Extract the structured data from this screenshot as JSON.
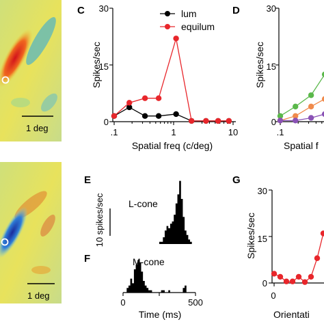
{
  "panels": {
    "a_scale": "1 deg",
    "b_scale": "1 deg",
    "c_letter": "C",
    "d_letter": "D",
    "e_letter": "E",
    "f_letter": "F",
    "g_letter": "G"
  },
  "histograms": {
    "e_label": "L-cone",
    "f_label": "M-cone",
    "scale_label": "10 spikes/sec",
    "x_label": "Time (ms)",
    "x_ticks": [
      "0",
      "500"
    ],
    "e_counts": [
      0,
      0,
      0,
      0,
      0,
      0,
      0,
      0,
      0,
      0,
      0,
      0,
      0,
      0,
      0,
      0,
      0,
      0,
      0,
      0,
      1,
      1,
      3,
      6,
      8,
      7,
      9,
      10,
      13,
      18,
      22,
      28,
      20,
      12,
      6,
      4,
      2,
      1,
      0,
      0
    ],
    "f_counts": [
      0,
      0,
      2,
      3,
      6,
      4,
      10,
      12,
      14,
      13,
      9,
      5,
      3,
      2,
      1,
      1,
      0,
      0,
      0,
      0,
      0,
      1,
      1,
      0,
      0,
      1,
      0,
      0,
      0,
      0,
      0,
      0,
      0,
      2,
      3,
      0,
      0,
      0,
      0,
      0
    ]
  },
  "chart_data": [
    {
      "panel": "C",
      "type": "line",
      "xscale": "log",
      "xlim": [
        0.1,
        10
      ],
      "ylim": [
        0,
        30
      ],
      "xlabel": "Spatial freq (c/deg)",
      "ylabel": "Spikes/sec",
      "xticks": [
        ".1",
        "1",
        "10"
      ],
      "yticks": [
        "0",
        "15",
        "30"
      ],
      "legend": "top-right",
      "series": [
        {
          "name": "lum",
          "color": "#000000",
          "x": [
            0.1,
            0.18,
            0.33,
            0.56,
            1.1,
            2,
            3.5,
            5.6,
            8.5
          ],
          "y": [
            1.5,
            3.8,
            1.5,
            1.5,
            2,
            0.2,
            0.2,
            0.2,
            0.2
          ]
        },
        {
          "name": "equilum",
          "color": "#e8262b",
          "x": [
            0.1,
            0.18,
            0.33,
            0.56,
            1.1,
            2,
            3.5,
            5.6,
            8.5
          ],
          "y": [
            1.5,
            5,
            6.2,
            6.2,
            22,
            0.2,
            0.2,
            0.2,
            0.2
          ]
        }
      ]
    },
    {
      "panel": "D",
      "type": "line",
      "xscale": "log",
      "ylim": [
        0,
        30
      ],
      "xlabel": "Spatial f",
      "ylabel": "Spikes/sec",
      "xticks": [
        ".1"
      ],
      "yticks": [
        "0",
        "15",
        "30"
      ],
      "series": [
        {
          "color": "#5ab84a",
          "x": [
            0.1,
            0.18,
            0.33,
            0.56,
            1.0
          ],
          "y": [
            1.5,
            4,
            7,
            12.5,
            13
          ]
        },
        {
          "color": "#f08a4b",
          "x": [
            0.1,
            0.18,
            0.33,
            0.56,
            1.0
          ],
          "y": [
            0.3,
            1.5,
            4,
            6,
            6.5
          ]
        },
        {
          "color": "#8a52b5",
          "x": [
            0.1,
            0.18,
            0.33,
            0.56,
            1.0
          ],
          "y": [
            0.3,
            0.3,
            1,
            2,
            0.5
          ]
        }
      ]
    },
    {
      "panel": "G",
      "type": "line",
      "ylim": [
        0,
        30
      ],
      "xlabel": "Orientati",
      "ylabel": "Spikes/sec",
      "xticks": [
        "0"
      ],
      "yticks": [
        "0",
        "15",
        "30"
      ],
      "series": [
        {
          "color": "#e8262b",
          "x": [
            0,
            1,
            2,
            3,
            4,
            5,
            6,
            7,
            8
          ],
          "y": [
            3,
            2,
            0.5,
            0.5,
            2,
            0.3,
            2,
            8,
            16
          ]
        }
      ]
    }
  ]
}
